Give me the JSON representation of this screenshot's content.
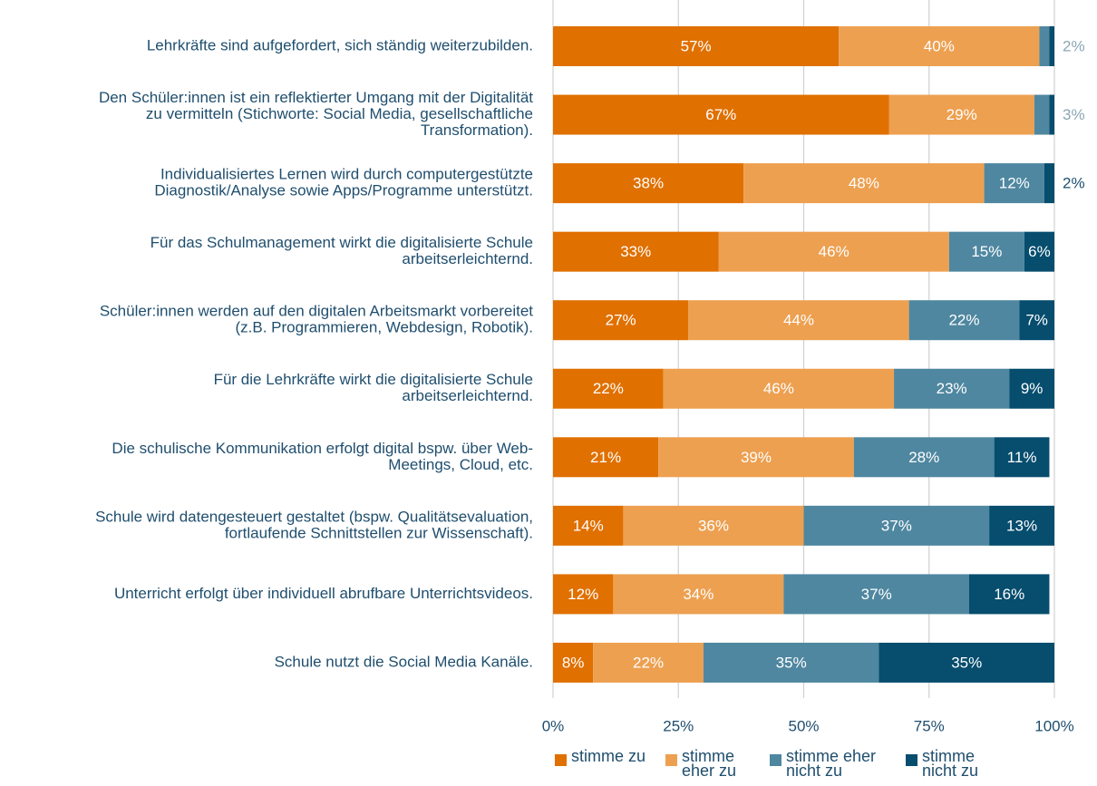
{
  "chart_data": {
    "type": "stacked-bar-horizontal",
    "categories": [
      [
        "Lehrkräfte sind aufgefordert, sich ständig weiterzubilden."
      ],
      [
        "Den Schüler:innen ist ein reflektierter Umgang mit der Digitalität",
        "zu vermitteln (Stichworte: Social Media, gesellschaftliche",
        "Transformation)."
      ],
      [
        "Individualisiertes Lernen wird durch computergestützte",
        "Diagnostik/Analyse sowie Apps/Programme unterstützt."
      ],
      [
        "Für das Schulmanagement wirkt die digitalisierte Schule",
        "arbeitserleichternd."
      ],
      [
        "Schüler:innen werden auf den digitalen Arbeitsmarkt vorbereitet",
        "(z.B. Programmieren, Webdesign, Robotik)."
      ],
      [
        "Für die Lehrkräfte wirkt die digitalisierte Schule",
        "arbeitserleichternd."
      ],
      [
        "Die schulische Kommunikation erfolgt digital bspw. über Web-",
        "Meetings, Cloud, etc."
      ],
      [
        "Schule wird datengesteuert gestaltet (bspw. Qualitätsevaluation,",
        "fortlaufende Schnittstellen zur Wissenschaft)."
      ],
      [
        "Unterricht erfolgt über individuell abrufbare Unterrichtsvideos."
      ],
      [
        "Schule nutzt die Social Media Kanäle."
      ]
    ],
    "series": [
      {
        "name": "stimme zu",
        "color": "#e07000",
        "values": [
          57,
          67,
          38,
          33,
          27,
          22,
          21,
          14,
          12,
          8
        ],
        "value_labels": [
          "57%",
          "67%",
          "38%",
          "33%",
          "27%",
          "22%",
          "21%",
          "14%",
          "12%",
          "8%"
        ]
      },
      {
        "name": "stimme eher zu",
        "color": "#eda050",
        "values": [
          40,
          29,
          48,
          46,
          44,
          46,
          39,
          36,
          34,
          22
        ],
        "value_labels": [
          "40%",
          "29%",
          "48%",
          "46%",
          "44%",
          "46%",
          "39%",
          "36%",
          "34%",
          "22%"
        ]
      },
      {
        "name": "stimme eher nicht zu",
        "color": "#4f87a0",
        "values": [
          2,
          3,
          12,
          15,
          22,
          23,
          28,
          37,
          37,
          35
        ],
        "value_labels": [
          "2%",
          "3%",
          "12%",
          "15%",
          "22%",
          "23%",
          "28%",
          "37%",
          "37%",
          "35%"
        ]
      },
      {
        "name": "stimme nicht zu",
        "color": "#064d6e",
        "values": [
          1,
          1,
          2,
          6,
          7,
          9,
          11,
          13,
          16,
          35
        ],
        "value_labels": [
          null,
          null,
          "2%",
          "6%",
          "7%",
          "9%",
          "11%",
          "13%",
          "16%",
          "35%"
        ]
      }
    ],
    "xlim": [
      0,
      100
    ],
    "xticks": [
      {
        "value": 0,
        "label": "0%"
      },
      {
        "value": 25,
        "label": "25%"
      },
      {
        "value": 50,
        "label": "50%"
      },
      {
        "value": 75,
        "label": "75%"
      },
      {
        "value": 100,
        "label": "100%"
      }
    ],
    "grid": true,
    "legend": "bottom"
  }
}
